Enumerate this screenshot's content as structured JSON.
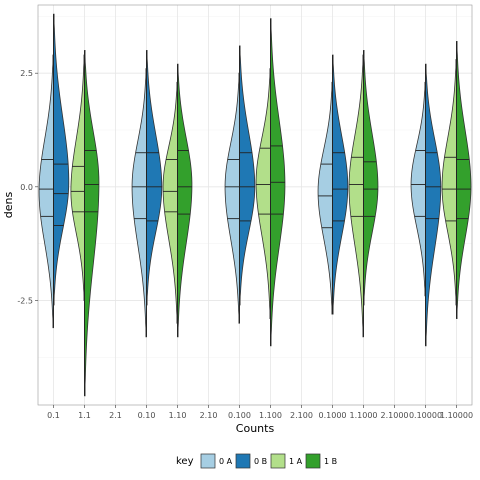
{
  "chart_data": {
    "type": "violin",
    "xlabel": "Counts",
    "ylabel": "dens",
    "ylim": [
      -4.8,
      4.0
    ],
    "y_ticks": [
      {
        "value": 2.5,
        "label": "2.5"
      },
      {
        "value": 0.0,
        "label": "0.0"
      },
      {
        "value": -2.5,
        "label": "-2.5"
      }
    ],
    "categories": [
      "0.1",
      "1.1",
      "2.1",
      "0.10",
      "1.10",
      "2.10",
      "0.100",
      "1.100",
      "2.100",
      "0.1000",
      "1.1000",
      "2.1000",
      "0.10000",
      "1.10000"
    ],
    "legend": {
      "title": "key",
      "position": "bottom",
      "entries": [
        {
          "label": "0 A",
          "color": "#a6cee3"
        },
        {
          "label": "0 B",
          "color": "#1f78b4"
        },
        {
          "label": "1 A",
          "color": "#b2df8a"
        },
        {
          "label": "1 B",
          "color": "#33a02c"
        }
      ]
    },
    "groups": [
      {
        "slot": 0,
        "key": "0",
        "halves": [
          {
            "series": "0 A",
            "ymin": -3.1,
            "ymax": 2.9,
            "q": [
              -0.65,
              -0.05,
              0.6
            ],
            "peak": -0.1,
            "width": 0.85
          },
          {
            "series": "0 B",
            "ymin": -2.6,
            "ymax": 3.8,
            "q": [
              -0.85,
              -0.15,
              0.5
            ],
            "peak": 0.1,
            "width": 0.9
          }
        ]
      },
      {
        "slot": 1,
        "key": "1",
        "halves": [
          {
            "series": "1 A",
            "ymin": -2.5,
            "ymax": 2.9,
            "q": [
              -0.55,
              -0.1,
              0.45
            ],
            "peak": -0.1,
            "width": 0.8
          },
          {
            "series": "1 B",
            "ymin": -4.6,
            "ymax": 3.0,
            "q": [
              -0.55,
              0.05,
              0.8
            ],
            "peak": 0.1,
            "width": 0.85
          }
        ]
      },
      {
        "slot": 3,
        "key": "0",
        "halves": [
          {
            "series": "0 A",
            "ymin": -3.3,
            "ymax": 2.6,
            "q": [
              -0.7,
              0.0,
              0.75
            ],
            "peak": 0.0,
            "width": 0.85
          },
          {
            "series": "0 B",
            "ymin": -2.6,
            "ymax": 3.0,
            "q": [
              -0.75,
              0.0,
              0.75
            ],
            "peak": 0.0,
            "width": 0.9
          }
        ]
      },
      {
        "slot": 4,
        "key": "1",
        "halves": [
          {
            "series": "1 A",
            "ymin": -3.0,
            "ymax": 2.3,
            "q": [
              -0.55,
              -0.1,
              0.6
            ],
            "peak": 0.0,
            "width": 0.85
          },
          {
            "series": "1 B",
            "ymin": -3.3,
            "ymax": 2.7,
            "q": [
              -0.6,
              0.0,
              0.8
            ],
            "peak": 0.05,
            "width": 0.85
          }
        ]
      },
      {
        "slot": 6,
        "key": "0",
        "halves": [
          {
            "series": "0 A",
            "ymin": -3.0,
            "ymax": 2.5,
            "q": [
              -0.7,
              0.0,
              0.6
            ],
            "peak": 0.0,
            "width": 0.85
          },
          {
            "series": "0 B",
            "ymin": -2.6,
            "ymax": 3.1,
            "q": [
              -0.75,
              0.0,
              0.75
            ],
            "peak": 0.0,
            "width": 0.9
          }
        ]
      },
      {
        "slot": 7,
        "key": "1",
        "halves": [
          {
            "series": "1 A",
            "ymin": -2.9,
            "ymax": 2.6,
            "q": [
              -0.6,
              0.05,
              0.85
            ],
            "peak": 0.1,
            "width": 0.85
          },
          {
            "series": "1 B",
            "ymin": -3.5,
            "ymax": 3.7,
            "q": [
              -0.6,
              0.1,
              0.9
            ],
            "peak": 0.05,
            "width": 0.85
          }
        ]
      },
      {
        "slot": 9,
        "key": "0",
        "halves": [
          {
            "series": "0 A",
            "ymin": -2.8,
            "ymax": 2.3,
            "q": [
              -0.9,
              -0.2,
              0.5
            ],
            "peak": -0.1,
            "width": 0.85
          },
          {
            "series": "0 B",
            "ymin": -2.8,
            "ymax": 2.9,
            "q": [
              -0.75,
              -0.05,
              0.75
            ],
            "peak": 0.0,
            "width": 0.9
          }
        ]
      },
      {
        "slot": 10,
        "key": "1",
        "halves": [
          {
            "series": "1 A",
            "ymin": -3.3,
            "ymax": 2.9,
            "q": [
              -0.65,
              0.05,
              0.65
            ],
            "peak": 0.0,
            "width": 0.85
          },
          {
            "series": "1 B",
            "ymin": -2.6,
            "ymax": 3.0,
            "q": [
              -0.65,
              -0.05,
              0.55
            ],
            "peak": 0.0,
            "width": 0.85
          }
        ]
      },
      {
        "slot": 12,
        "key": "0",
        "halves": [
          {
            "series": "0 A",
            "ymin": -2.4,
            "ymax": 2.3,
            "q": [
              -0.65,
              0.05,
              0.8
            ],
            "peak": 0.05,
            "width": 0.85
          },
          {
            "series": "0 B",
            "ymin": -3.5,
            "ymax": 2.7,
            "q": [
              -0.7,
              0.0,
              0.75
            ],
            "peak": 0.0,
            "width": 0.9
          }
        ]
      },
      {
        "slot": 13,
        "key": "1",
        "halves": [
          {
            "series": "1 A",
            "ymin": -2.6,
            "ymax": 2.8,
            "q": [
              -0.75,
              -0.05,
              0.65
            ],
            "peak": 0.0,
            "width": 0.85
          },
          {
            "series": "1 B",
            "ymin": -2.9,
            "ymax": 3.2,
            "q": [
              -0.7,
              -0.05,
              0.6
            ],
            "peak": 0.0,
            "width": 0.85
          }
        ]
      }
    ]
  }
}
